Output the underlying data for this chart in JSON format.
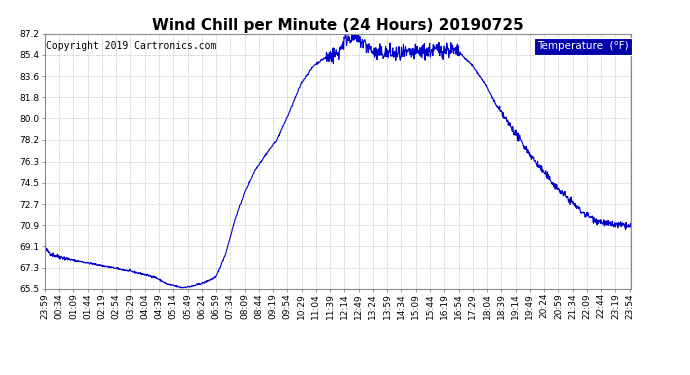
{
  "title": "Wind Chill per Minute (24 Hours) 20190725",
  "copyright": "Copyright 2019 Cartronics.com",
  "legend_label": "Temperature  (°F)",
  "line_color": "#0000CC",
  "background_color": "#ffffff",
  "plot_bg_color": "#ffffff",
  "grid_color": "#bbbbbb",
  "ylim": [
    65.5,
    87.2
  ],
  "yticks": [
    65.5,
    67.3,
    69.1,
    70.9,
    72.7,
    74.5,
    76.3,
    78.2,
    80.0,
    81.8,
    83.6,
    85.4,
    87.2
  ],
  "title_fontsize": 11,
  "tick_fontsize": 6.5,
  "copyright_fontsize": 7,
  "legend_fontsize": 7.5,
  "legend_bg": "#0000AA",
  "legend_fg": "#ffffff"
}
